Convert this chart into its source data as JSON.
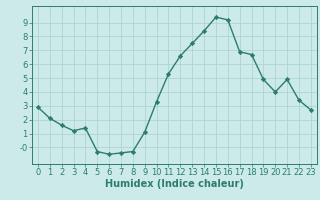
{
  "x": [
    0,
    1,
    2,
    3,
    4,
    5,
    6,
    7,
    8,
    9,
    10,
    11,
    12,
    13,
    14,
    15,
    16,
    17,
    18,
    19,
    20,
    21,
    22,
    23
  ],
  "y": [
    2.9,
    2.1,
    1.6,
    1.2,
    1.4,
    -0.3,
    -0.5,
    -0.4,
    -0.3,
    1.1,
    3.3,
    5.3,
    6.6,
    7.5,
    8.4,
    9.4,
    9.2,
    6.9,
    6.7,
    4.9,
    4.0,
    4.9,
    3.4,
    2.7
  ],
  "line_color": "#2d7d6f",
  "marker": "D",
  "marker_size": 2.2,
  "bg_color": "#cceae7",
  "grid_color": "#afd4d0",
  "tick_color": "#2d7d6f",
  "label_color": "#2d7d6f",
  "xlabel": "Humidex (Indice chaleur)",
  "xlim": [
    -0.5,
    23.5
  ],
  "ylim": [
    -1.2,
    10.2
  ],
  "yticks": [
    0,
    1,
    2,
    3,
    4,
    5,
    6,
    7,
    8,
    9
  ],
  "ytick_labels": [
    "-0",
    "1",
    "2",
    "3",
    "4",
    "5",
    "6",
    "7",
    "8",
    "9"
  ],
  "xticks": [
    0,
    1,
    2,
    3,
    4,
    5,
    6,
    7,
    8,
    9,
    10,
    11,
    12,
    13,
    14,
    15,
    16,
    17,
    18,
    19,
    20,
    21,
    22,
    23
  ],
  "tick_fontsize": 6.0,
  "xlabel_fontsize": 7.0
}
